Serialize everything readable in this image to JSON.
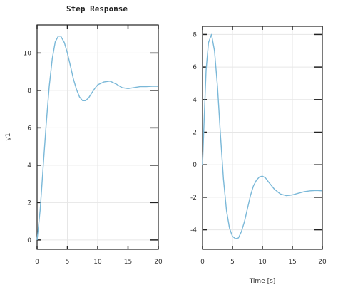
{
  "chart_data": [
    {
      "type": "line",
      "title": "Step Response",
      "xlabel": "",
      "ylabel": "y1",
      "xlim": [
        0,
        20
      ],
      "ylim": [
        -0.5,
        11.5
      ],
      "xticks": [
        0,
        5,
        10,
        15,
        20
      ],
      "yticks": [
        0,
        2,
        4,
        6,
        8,
        10
      ],
      "grid": true,
      "line_color": "#7ab8d8",
      "series": [
        {
          "x": [
            0,
            0.5,
            1,
            1.5,
            2,
            2.5,
            3,
            3.5,
            3.9,
            4.5,
            5,
            5.5,
            6,
            6.5,
            7,
            7.5,
            8,
            8.5,
            9,
            9.5,
            10,
            11,
            12,
            13,
            14,
            15,
            16,
            17,
            18,
            19,
            20
          ],
          "y": [
            0,
            1.6,
            3.9,
            6.2,
            8.2,
            9.7,
            10.6,
            10.9,
            10.9,
            10.55,
            10.0,
            9.3,
            8.6,
            8.05,
            7.65,
            7.45,
            7.45,
            7.6,
            7.85,
            8.1,
            8.3,
            8.45,
            8.5,
            8.35,
            8.15,
            8.1,
            8.15,
            8.2,
            8.2,
            8.22,
            8.22
          ]
        }
      ]
    },
    {
      "type": "line",
      "title": "",
      "xlabel": "Time [s]",
      "ylabel": "",
      "xlim": [
        0,
        20
      ],
      "ylim": [
        -5.2,
        8.5
      ],
      "xticks": [
        0,
        5,
        10,
        15,
        20
      ],
      "yticks": [
        -4,
        -2,
        0,
        2,
        4,
        6,
        8
      ],
      "grid": true,
      "line_color": "#7ab8d8",
      "series": [
        {
          "x": [
            0,
            0.3,
            0.6,
            1,
            1.5,
            2,
            2.5,
            3,
            3.5,
            4,
            4.5,
            5,
            5.5,
            6,
            6.5,
            7,
            7.5,
            8,
            8.5,
            9,
            9.5,
            10,
            10.5,
            11,
            12,
            13,
            14,
            15,
            16,
            17,
            18,
            19,
            20
          ],
          "y": [
            0,
            3.0,
            5.8,
            7.5,
            8.0,
            7.0,
            4.8,
            1.8,
            -0.9,
            -2.8,
            -3.9,
            -4.4,
            -4.55,
            -4.5,
            -4.1,
            -3.5,
            -2.7,
            -1.9,
            -1.3,
            -0.95,
            -0.75,
            -0.7,
            -0.8,
            -1.05,
            -1.5,
            -1.8,
            -1.9,
            -1.85,
            -1.75,
            -1.65,
            -1.6,
            -1.58,
            -1.6
          ]
        }
      ]
    }
  ]
}
